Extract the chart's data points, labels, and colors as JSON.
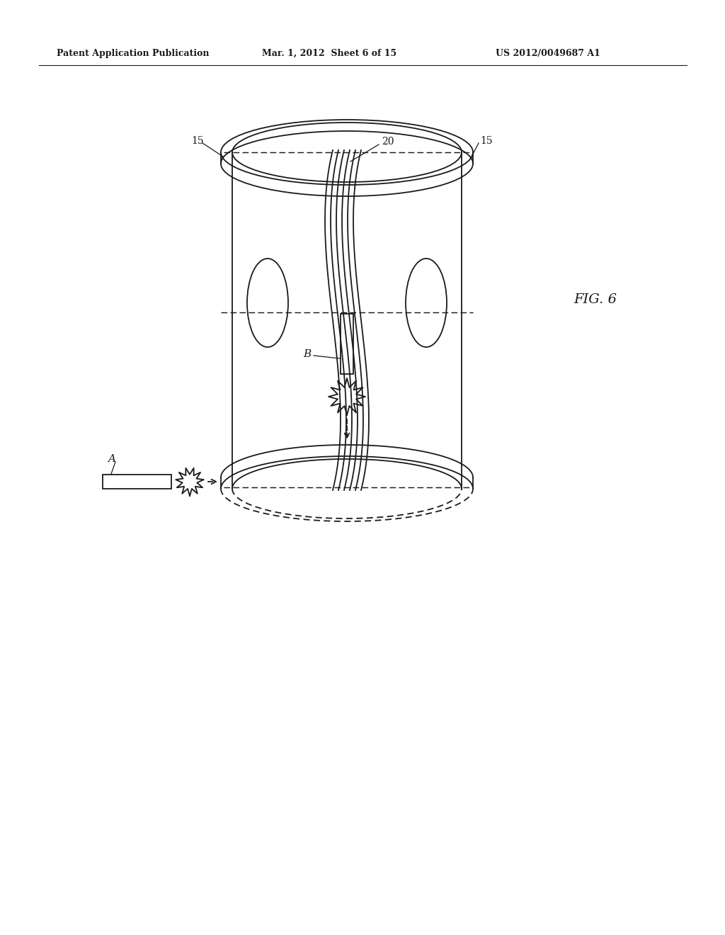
{
  "bg_color": "#ffffff",
  "line_color": "#1a1a1a",
  "header_left": "Patent Application Publication",
  "header_center": "Mar. 1, 2012  Sheet 6 of 15",
  "header_right": "US 2012/0049687 A1",
  "fig_label": "FIG. 6",
  "label_15_left": "15",
  "label_15_right": "15",
  "label_20": "20",
  "label_A": "A",
  "label_B": "B"
}
